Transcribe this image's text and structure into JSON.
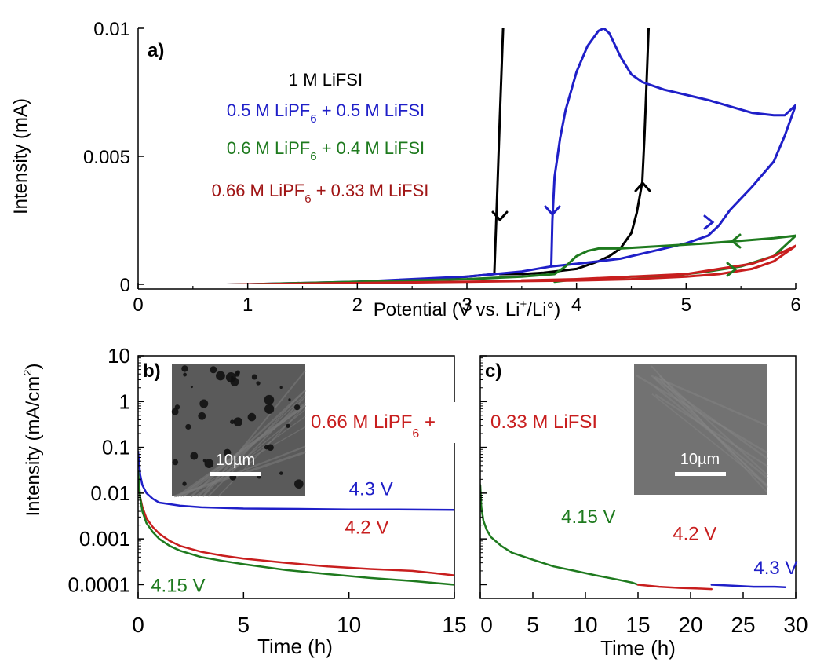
{
  "colors": {
    "black": "#000000",
    "blue": "#1f1fc8",
    "green": "#1e7a1e",
    "red": "#c81e1e",
    "darkred": "#a01515"
  },
  "chart_data": [
    {
      "panel": "a)",
      "type": "line",
      "xlabel": "Potential (V vs. Li+/Li°)",
      "xlabel_parts": {
        "pre": "Potential (V vs. Li",
        "sup": "+",
        "post": "/Li°)"
      },
      "ylabel": "Intensity (mA)",
      "xlim": [
        0,
        6
      ],
      "ylim": [
        0,
        0.01
      ],
      "xticks": [
        0,
        1,
        2,
        3,
        4,
        5,
        6
      ],
      "yticks": [
        0,
        0.005,
        0.01
      ],
      "ytick_labels": [
        "0",
        "0.005",
        "0.01"
      ],
      "legend": [
        {
          "text": "1 M LiFSI",
          "pre": "1 M LiFSI",
          "sub": "",
          "post": "",
          "color": "black"
        },
        {
          "text": "0.5 M LiPF6 + 0.5 M LiFSI",
          "pre": "0.5 M LiPF",
          "sub": "6",
          "post": " + 0.5 M LiFSI",
          "color": "blue"
        },
        {
          "text": "0.6 M LiPF6 + 0.4 M LiFSI",
          "pre": "0.6 M LiPF",
          "sub": "6",
          "post": " + 0.4 M LiFSI",
          "color": "green"
        },
        {
          "text": "0.66 M LiPF6 + 0.33 M LiFSI",
          "pre": "0.66 M LiPF",
          "sub": "6",
          "post": " + 0.33 M LiFSI",
          "color": "darkred"
        }
      ],
      "series": [
        {
          "name": "1 M LiFSI",
          "color": "black",
          "x": [
            1.5,
            2.5,
            3.0,
            3.25,
            3.28,
            3.3,
            3.33,
            3.35,
            3.4,
            3.5,
            3.7,
            4.0,
            4.2,
            4.4,
            4.5,
            4.55,
            4.6,
            4.62,
            4.64,
            4.65,
            4.66
          ],
          "y": [
            0.0,
            0.00015,
            0.0003,
            0.0004,
            0.004,
            0.0065,
            0.01,
            0.0102,
            0.0102,
            0.0102,
            0.0102,
            0.0102,
            0.0102,
            0.0102,
            0.0102,
            0.0102,
            0.0102,
            0.0102,
            0.0102,
            0.0102,
            0.0102
          ]
        },
        {
          "name": "1 M LiFSI (reverse)",
          "color": "black",
          "x": [
            4.66,
            4.64,
            4.62,
            4.6,
            4.55,
            4.5,
            4.4,
            4.3,
            4.2,
            4.0,
            3.7,
            3.5,
            3.3
          ],
          "y": [
            0.0102,
            0.008,
            0.0058,
            0.004,
            0.0028,
            0.002,
            0.0014,
            0.0011,
            0.0009,
            0.0006,
            0.00045,
            0.0004,
            0.0004
          ]
        },
        {
          "name": "0.5 M LiPF6 + 0.5 M LiFSI",
          "color": "blue",
          "x": [
            0.4,
            1.0,
            2.0,
            3.0,
            3.5,
            3.77,
            3.78,
            3.8,
            3.85,
            3.9,
            4.0,
            4.1,
            4.2,
            4.25,
            4.3,
            4.4,
            4.5,
            4.6,
            4.8,
            5.2,
            5.6,
            5.8,
            5.9,
            5.95,
            6.0
          ],
          "y": [
            -5e-05,
            0.0,
            0.0001,
            0.0003,
            0.0005,
            0.0007,
            0.0025,
            0.0042,
            0.0057,
            0.0068,
            0.0083,
            0.0093,
            0.0099,
            0.01,
            0.0098,
            0.0089,
            0.0082,
            0.0079,
            0.0076,
            0.0072,
            0.0067,
            0.0066,
            0.0066,
            0.0068,
            0.007
          ]
        },
        {
          "name": "0.5 M LiPF6 + 0.5 M LiFSI (return)",
          "color": "blue",
          "x": [
            6.0,
            5.9,
            5.8,
            5.6,
            5.4,
            5.3,
            5.2,
            5.0,
            4.8,
            4.6,
            4.4,
            4.2,
            4.0,
            3.77
          ],
          "y": [
            0.007,
            0.0058,
            0.0048,
            0.0038,
            0.0029,
            0.0023,
            0.0019,
            0.0016,
            0.0014,
            0.0012,
            0.001,
            0.0009,
            0.0008,
            0.0007
          ]
        },
        {
          "name": "0.6 M LiPF6 + 0.4 M LiFSI",
          "color": "green",
          "x": [
            0.4,
            1.0,
            2.0,
            3.0,
            3.5,
            3.8,
            3.9,
            4.0,
            4.1,
            4.2,
            4.4,
            4.8,
            5.2,
            5.5,
            5.8,
            6.0
          ],
          "y": [
            -5e-05,
            0.0,
            0.0001,
            0.0002,
            0.0003,
            0.0004,
            0.0007,
            0.0011,
            0.0013,
            0.0014,
            0.0014,
            0.0015,
            0.0016,
            0.0017,
            0.0018,
            0.0019
          ]
        },
        {
          "name": "0.6 M LiPF6 + 0.4 M LiFSI (return)",
          "color": "green",
          "x": [
            6.0,
            5.8,
            5.5,
            5.2,
            5.0,
            4.8,
            4.5,
            4.2,
            4.0,
            3.8
          ],
          "y": [
            0.0019,
            0.0011,
            0.0007,
            0.0005,
            0.0004,
            0.0003,
            0.0003,
            0.0002,
            0.0002,
            0.0001
          ]
        },
        {
          "name": "0.66 M LiPF6 + 0.33 M LiFSI",
          "color": "red",
          "x": [
            0.4,
            1.0,
            2.0,
            3.0,
            4.0,
            4.5,
            5.0,
            5.3,
            5.6,
            5.8,
            6.0
          ],
          "y": [
            -5e-05,
            0.0,
            5e-05,
            0.0001,
            0.00015,
            0.0002,
            0.0003,
            0.0004,
            0.0006,
            0.0009,
            0.0015
          ]
        },
        {
          "name": "0.66 M LiPF6 + 0.33 M LiFSI (return)",
          "color": "red",
          "x": [
            6.0,
            5.8,
            5.6,
            5.3,
            5.0,
            4.5,
            4.0,
            3.5
          ],
          "y": [
            0.0015,
            0.0011,
            0.0008,
            0.0006,
            0.0004,
            0.0003,
            0.0002,
            0.00015
          ]
        }
      ]
    },
    {
      "panel": "b)",
      "type": "line",
      "xlabel": "Time (h)",
      "ylabel": "Intensity (mA/cm²)",
      "ylabel_parts": {
        "pre": "Intensity (mA/cm",
        "sup": "2",
        "post": ")"
      },
      "yscale": "log",
      "xlim": [
        0,
        15
      ],
      "ylim": [
        5e-05,
        10
      ],
      "xticks": [
        0,
        5,
        10,
        15
      ],
      "yticks": [
        0.0001,
        0.001,
        0.01,
        0.1,
        1,
        10
      ],
      "ytick_labels": [
        "0.0001",
        "0.001",
        "0.01",
        "0.1",
        "1",
        "10"
      ],
      "inset_scale": "10µm",
      "series": [
        {
          "name": "4.3 V",
          "color": "blue",
          "x": [
            0.0,
            0.1,
            0.2,
            0.4,
            0.7,
            1.0,
            2.0,
            3.0,
            5.0,
            8.0,
            10.0,
            12.0,
            15.0
          ],
          "y": [
            0.08,
            0.025,
            0.015,
            0.01,
            0.0075,
            0.0062,
            0.0053,
            0.0049,
            0.0046,
            0.0045,
            0.0044,
            0.0044,
            0.0043
          ]
        },
        {
          "name": "4.2 V",
          "color": "red",
          "x": [
            0.0,
            0.1,
            0.2,
            0.4,
            0.7,
            1.0,
            1.5,
            2.0,
            3.0,
            4.0,
            5.0,
            7.0,
            9.0,
            11.0,
            13.0,
            14.0,
            15.0
          ],
          "y": [
            0.02,
            0.008,
            0.005,
            0.0028,
            0.0018,
            0.0013,
            0.0009,
            0.0007,
            0.00052,
            0.00043,
            0.00037,
            0.0003,
            0.00025,
            0.00022,
            0.0002,
            0.00018,
            0.00016
          ]
        },
        {
          "name": "4.15 V",
          "color": "green",
          "x": [
            0.0,
            0.1,
            0.2,
            0.4,
            0.7,
            1.0,
            1.5,
            2.0,
            3.0,
            4.0,
            5.0,
            7.0,
            9.0,
            11.0,
            13.0,
            15.0
          ],
          "y": [
            0.03,
            0.008,
            0.004,
            0.0022,
            0.0014,
            0.001,
            0.0007,
            0.00055,
            0.0004,
            0.00033,
            0.00028,
            0.00021,
            0.00017,
            0.00014,
            0.00012,
            0.0001
          ]
        }
      ],
      "annotations": [
        {
          "text": "4.3 V",
          "color": "blue",
          "x": 10.0,
          "y": 0.009
        },
        {
          "text": "4.2 V",
          "color": "red",
          "x": 9.8,
          "y": 0.0013
        },
        {
          "text": "4.15 V",
          "color": "green",
          "x": 0.6,
          "y": 7e-05
        }
      ]
    },
    {
      "panel": "c)",
      "type": "line",
      "xlabel": "Time (h)",
      "yscale": "log",
      "xlim": [
        0,
        30
      ],
      "ylim": [
        5e-05,
        10
      ],
      "xticks": [
        0,
        5,
        10,
        15,
        20,
        25,
        30
      ],
      "inset_scale": "10µm",
      "series": [
        {
          "name": "4.15 V",
          "color": "green",
          "x": [
            0.0,
            0.1,
            0.3,
            0.6,
            1.0,
            2.0,
            3.0,
            5.0,
            7.0,
            9.0,
            11.0,
            13.0,
            14.5,
            15.0
          ],
          "y": [
            0.015,
            0.005,
            0.0025,
            0.0016,
            0.0011,
            0.0007,
            0.0005,
            0.00035,
            0.00025,
            0.0002,
            0.00016,
            0.00013,
            0.00011,
            0.0001
          ]
        },
        {
          "name": "4.2 V",
          "color": "red",
          "x": [
            15.0,
            17.0,
            19.0,
            21.0,
            22.0
          ],
          "y": [
            0.0001,
            9e-05,
            8.5e-05,
            8.2e-05,
            8e-05
          ]
        },
        {
          "name": "4.3 V",
          "color": "blue",
          "x": [
            22.0,
            24.0,
            26.0,
            28.0,
            29.0
          ],
          "y": [
            0.0001,
            9.5e-05,
            9e-05,
            9e-05,
            8.8e-05
          ]
        }
      ],
      "annotations": [
        {
          "text": "4.15 V",
          "color": "green",
          "x": 7.7,
          "y": 0.0022
        },
        {
          "text": "4.2 V",
          "color": "red",
          "x": 18.3,
          "y": 0.00095
        },
        {
          "text": "4.3 V",
          "color": "blue",
          "x": 26.0,
          "y": 0.00017
        }
      ]
    }
  ],
  "shared_label": {
    "text": "0.66 M LiPF6 + 0.33 M LiFSI",
    "left_pre": "0.66 M LiPF",
    "left_sub": "6",
    "left_post": " +",
    "right": "0.33 M LiFSI",
    "color": "red"
  }
}
